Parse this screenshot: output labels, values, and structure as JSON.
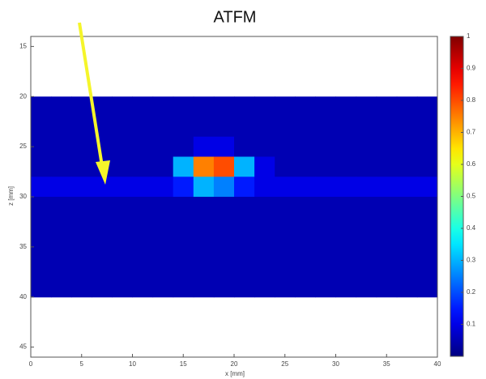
{
  "chart_data": {
    "type": "heatmap",
    "title": "ATFM",
    "x_label": "x [mm]",
    "y_label": "z [mm]",
    "xlim": [
      0,
      40
    ],
    "ylim": [
      14,
      46
    ],
    "y_inverted": true,
    "xticks": [
      0,
      5,
      10,
      15,
      20,
      25,
      30,
      35,
      40
    ],
    "yticks": [
      15,
      20,
      25,
      30,
      35,
      40,
      45
    ],
    "extent_x": [
      0,
      40
    ],
    "extent_y": [
      20,
      40
    ],
    "colormap": "jet",
    "clim": [
      0,
      1
    ],
    "cticks": [
      0.1,
      0.2,
      0.3,
      0.4,
      0.5,
      0.6,
      0.7,
      0.8,
      0.9,
      1
    ],
    "values": [
      [
        0.05,
        0.05,
        0.05,
        0.05,
        0.05,
        0.05,
        0.05,
        0.05,
        0.05,
        0.05,
        0.05,
        0.05,
        0.05,
        0.05,
        0.05,
        0.05,
        0.05,
        0.05,
        0.05,
        0.05
      ],
      [
        0.05,
        0.05,
        0.05,
        0.05,
        0.05,
        0.05,
        0.05,
        0.05,
        0.05,
        0.05,
        0.05,
        0.05,
        0.05,
        0.05,
        0.05,
        0.05,
        0.05,
        0.05,
        0.05,
        0.05
      ],
      [
        0.05,
        0.05,
        0.05,
        0.05,
        0.05,
        0.05,
        0.05,
        0.05,
        0.1,
        0.1,
        0.05,
        0.05,
        0.05,
        0.05,
        0.05,
        0.05,
        0.05,
        0.05,
        0.05,
        0.05
      ],
      [
        0.05,
        0.05,
        0.05,
        0.05,
        0.05,
        0.05,
        0.05,
        0.3,
        0.75,
        0.8,
        0.3,
        0.1,
        0.05,
        0.05,
        0.05,
        0.05,
        0.05,
        0.05,
        0.05,
        0.05
      ],
      [
        0.1,
        0.1,
        0.1,
        0.1,
        0.1,
        0.1,
        0.1,
        0.15,
        0.3,
        0.25,
        0.15,
        0.1,
        0.1,
        0.1,
        0.1,
        0.1,
        0.1,
        0.1,
        0.1,
        0.1
      ],
      [
        0.05,
        0.05,
        0.05,
        0.05,
        0.05,
        0.05,
        0.05,
        0.05,
        0.05,
        0.05,
        0.05,
        0.05,
        0.05,
        0.05,
        0.05,
        0.05,
        0.05,
        0.05,
        0.05,
        0.05
      ],
      [
        0.05,
        0.05,
        0.05,
        0.05,
        0.05,
        0.05,
        0.05,
        0.05,
        0.05,
        0.05,
        0.05,
        0.05,
        0.05,
        0.05,
        0.05,
        0.05,
        0.05,
        0.05,
        0.05,
        0.05
      ],
      [
        0.05,
        0.05,
        0.05,
        0.05,
        0.05,
        0.05,
        0.05,
        0.05,
        0.05,
        0.05,
        0.05,
        0.05,
        0.05,
        0.05,
        0.05,
        0.05,
        0.05,
        0.05,
        0.05,
        0.05
      ],
      [
        0.05,
        0.05,
        0.05,
        0.05,
        0.05,
        0.05,
        0.05,
        0.05,
        0.05,
        0.05,
        0.05,
        0.05,
        0.05,
        0.05,
        0.05,
        0.05,
        0.05,
        0.05,
        0.05,
        0.05
      ],
      [
        0.05,
        0.05,
        0.05,
        0.05,
        0.05,
        0.05,
        0.05,
        0.05,
        0.05,
        0.05,
        0.05,
        0.05,
        0.05,
        0.05,
        0.05,
        0.05,
        0.05,
        0.05,
        0.05,
        0.05
      ]
    ]
  }
}
